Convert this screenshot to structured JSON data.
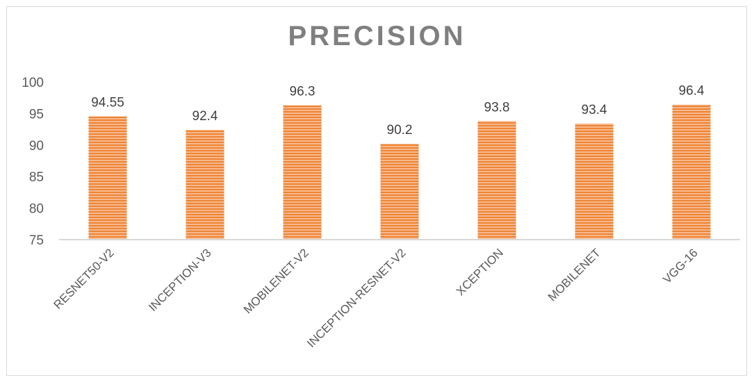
{
  "chart_data": {
    "type": "bar",
    "title": "PRECISION",
    "categories": [
      "RESNET50-V2",
      "INCEPTION-V3",
      "MOBILENET-V2",
      "INCEPTION-RESNET-V2",
      "XCEPTION",
      "MOBILENET",
      "VGG-16"
    ],
    "values": [
      94.55,
      92.4,
      96.3,
      90.2,
      93.8,
      93.4,
      96.4
    ],
    "data_labels": [
      "94.55",
      "92.4",
      "96.3",
      "90.2",
      "93.8",
      "93.4",
      "96.4"
    ],
    "ylim": [
      75,
      100
    ],
    "yticks": [
      75,
      80,
      85,
      90,
      95,
      100
    ],
    "xlabel": "",
    "ylabel": "",
    "grid": false,
    "legend": "none",
    "bar_color": "#f4a46c",
    "bar_stripe_color": "#ef8a3c"
  }
}
